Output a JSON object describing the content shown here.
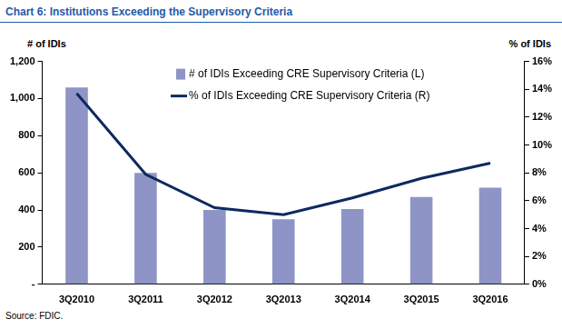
{
  "chart_data": {
    "type": "bar",
    "title": "Chart 6: Institutions Exceeding the Supervisory Criteria",
    "y_label": "# of IDIs",
    "y2_label": "% of IDIs",
    "source": "Source: FDIC.",
    "categories": [
      "3Q2010",
      "3Q2011",
      "3Q2012",
      "3Q2013",
      "3Q2014",
      "3Q2015",
      "3Q2016"
    ],
    "series": [
      {
        "name": "# of IDIs Exceeding CRE Supervisory Criteria (L)",
        "type": "bar",
        "color": "#8e95c6",
        "values": [
          1060,
          600,
          400,
          350,
          405,
          470,
          520
        ]
      },
      {
        "name": "% of IDIs Exceeding CRE Supervisory Criteria (R)",
        "type": "line",
        "color": "#0d2a5e",
        "axis": "y2",
        "marker": "none",
        "line_style": "solid",
        "values": [
          13.7,
          7.9,
          5.5,
          5.0,
          6.2,
          7.6,
          8.7
        ]
      }
    ],
    "ylim": [
      0,
      1200
    ],
    "yticks": [
      {
        "value": 0,
        "label": "-"
      },
      200,
      400,
      600,
      800,
      {
        "value": 1000,
        "label": "1,000"
      },
      {
        "value": 1200,
        "label": "1,200"
      }
    ],
    "y2lim": [
      0,
      16
    ],
    "y2ticks": [
      {
        "value": 0,
        "label": "0%"
      },
      {
        "value": 2,
        "label": "2%"
      },
      {
        "value": 4,
        "label": "4%"
      },
      {
        "value": 6,
        "label": "6%"
      },
      {
        "value": 8,
        "label": "8%"
      },
      {
        "value": 10,
        "label": "10%"
      },
      {
        "value": 12,
        "label": "12%"
      },
      {
        "value": 14,
        "label": "14%"
      },
      {
        "value": 16,
        "label": "16%"
      }
    ],
    "grid": false,
    "legend": "top"
  }
}
